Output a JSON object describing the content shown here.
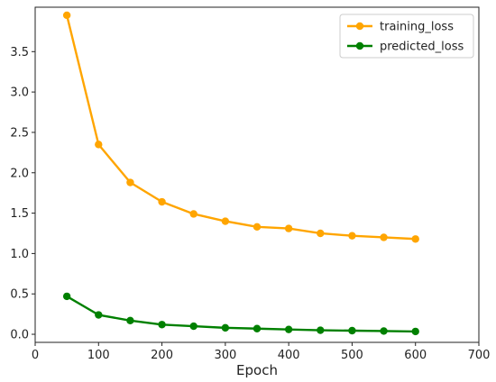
{
  "chart_data": {
    "type": "line",
    "title": "",
    "xlabel": "Epoch",
    "ylabel": "",
    "xlim": [
      0,
      700
    ],
    "ylim": [
      -0.1,
      4.05
    ],
    "xticks": [
      0,
      100,
      200,
      300,
      400,
      500,
      600,
      700
    ],
    "yticks": [
      0.0,
      0.5,
      1.0,
      1.5,
      2.0,
      2.5,
      3.0,
      3.5
    ],
    "grid": false,
    "legend": "top-right",
    "x": [
      50,
      100,
      150,
      200,
      250,
      300,
      350,
      400,
      450,
      500,
      550,
      600
    ],
    "series": [
      {
        "name": "training_loss",
        "color": "#ffa500",
        "values": [
          3.95,
          2.35,
          1.88,
          1.64,
          1.49,
          1.4,
          1.33,
          1.31,
          1.25,
          1.22,
          1.2,
          1.18
        ]
      },
      {
        "name": "predicted_loss",
        "color": "#008000",
        "values": [
          0.47,
          0.24,
          0.17,
          0.12,
          0.1,
          0.08,
          0.07,
          0.06,
          0.05,
          0.045,
          0.04,
          0.035
        ]
      }
    ]
  }
}
